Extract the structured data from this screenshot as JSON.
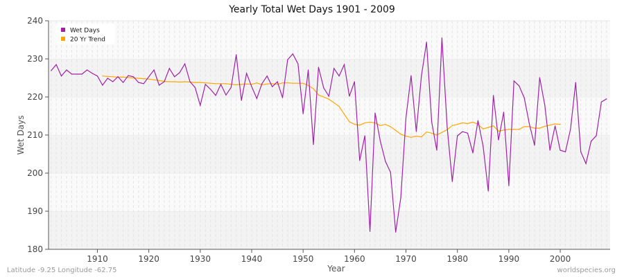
{
  "chart_data": {
    "type": "line",
    "title": "Yearly Total Wet Days 1901 - 2009",
    "xlabel": "Year",
    "ylabel": "Wet Days",
    "xlim": [
      1900.5,
      2009.7
    ],
    "ylim": [
      180,
      240
    ],
    "xticks": [
      1910,
      1920,
      1930,
      1940,
      1950,
      1960,
      1970,
      1980,
      1990,
      2000
    ],
    "yticks": [
      180,
      190,
      200,
      210,
      220,
      230,
      240
    ],
    "grid": true,
    "legend_position": "top-left",
    "series": [
      {
        "name": "Wet Days",
        "color": "#a020a8",
        "x_start": 1901,
        "values": [
          226.9,
          228.5,
          225.5,
          227.1,
          226,
          226,
          226,
          227.1,
          226.2,
          225.5,
          223.1,
          224.9,
          224,
          225.3,
          223.8,
          225.6,
          225.3,
          223.8,
          223.5,
          225.3,
          227.1,
          223.1,
          224,
          227.5,
          225.3,
          226.4,
          228.7,
          224,
          222.5,
          217.8,
          223.3,
          222,
          220.4,
          223.3,
          220.5,
          222.5,
          231.1,
          219.1,
          226.2,
          222.7,
          219.6,
          223.5,
          225.5,
          222.7,
          224,
          219.8,
          229.8,
          231.3,
          228.7,
          215.6,
          227.1,
          207.5,
          227.8,
          222.4,
          220.2,
          227.5,
          225.5,
          228.5,
          220.2,
          224,
          203.3,
          209.8,
          184.7,
          215.8,
          208.5,
          203.1,
          200.2,
          184.5,
          193.6,
          214.5,
          225.6,
          210.9,
          225.5,
          234.4,
          213.5,
          206,
          235.5,
          212.2,
          197.8,
          209.8,
          210.9,
          210.5,
          205.3,
          213.8,
          207.1,
          195.3,
          220.4,
          208.7,
          216,
          196.7,
          224.2,
          222.9,
          219.8,
          212.9,
          207.3,
          225.1,
          217.8,
          206,
          212.4,
          206,
          205.6,
          211.6,
          223.8,
          205.6,
          202.5,
          208.4,
          209.8,
          218.7,
          219.5
        ]
      },
      {
        "name": "20 Yr Trend",
        "color": "#ffa500",
        "x_start": 1911,
        "values": [
          225.5,
          225.4,
          225.3,
          225.2,
          225.2,
          225.1,
          225,
          224.9,
          224.8,
          224.7,
          224.5,
          224.3,
          224.1,
          224,
          224,
          223.9,
          224,
          223.9,
          223.8,
          223.8,
          223.7,
          223.6,
          223.5,
          223.5,
          223.5,
          223.3,
          223.2,
          223.3,
          223.4,
          223.3,
          223.7,
          223.2,
          223.4,
          223.5,
          223.3,
          223.7,
          223.7,
          223.6,
          223.6,
          223.6,
          223,
          222.2,
          220.5,
          220,
          219.4,
          218.5,
          217.5,
          215.5,
          213.5,
          212.8,
          212.6,
          213.2,
          213.4,
          213.2,
          212.5,
          212.8,
          212.2,
          211.2,
          210.2,
          209.7,
          209.4,
          209.7,
          209.5,
          210.8,
          210.5,
          210,
          210.7,
          211.4,
          212.5,
          212.8,
          213.2,
          213,
          213.4,
          212.8,
          211.6,
          212,
          212.4,
          211,
          211.3,
          211.5,
          211.5,
          211.5,
          212.2,
          212.2,
          211.8,
          211.8,
          212.3,
          212.6,
          212.9,
          212.8
        ]
      }
    ]
  },
  "footer": {
    "location": "Latitude -9.25 Longitude -62.75",
    "source": "worldspecies.org"
  }
}
